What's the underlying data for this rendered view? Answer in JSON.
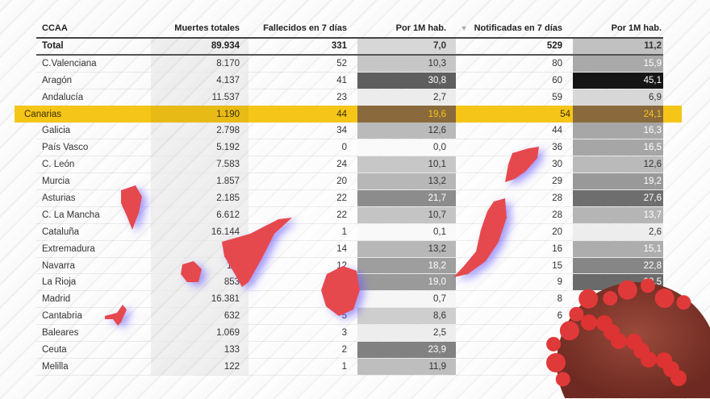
{
  "headers": {
    "ccaa": "CCAA",
    "muertes": "Muertes totales",
    "fallecidos": "Fallecidos en 7 días",
    "por1m_a": "Por 1M hab.",
    "notificadas": "Notificadas en 7 días",
    "por1m_b": "Por 1M hab.",
    "sort_icon": "triangle-down"
  },
  "total": {
    "name": "Total",
    "muertes": "89.934",
    "fallecidos": "331",
    "por1m_a": "7,0",
    "notificadas": "529",
    "por1m_b": "11,2"
  },
  "highlight": {
    "name": "Canarias",
    "muertes": "1.190",
    "fallecidos": "44",
    "por1m_a": "19,6",
    "notificadas": "54",
    "por1m_b": "24,1"
  },
  "rows_before": [
    {
      "name": "C.Valenciana",
      "muertes": "8.170",
      "fallecidos": "52",
      "por1m_a": "10,3",
      "notificadas": "80",
      "por1m_b": "15,9"
    },
    {
      "name": "Aragón",
      "muertes": "4.137",
      "fallecidos": "41",
      "por1m_a": "30,8",
      "notificadas": "60",
      "por1m_b": "45,1"
    },
    {
      "name": "Andalucía",
      "muertes": "11.537",
      "fallecidos": "23",
      "por1m_a": "2,7",
      "notificadas": "59",
      "por1m_b": "6,9"
    }
  ],
  "rows_after": [
    {
      "name": "Galicia",
      "muertes": "2.798",
      "fallecidos": "34",
      "por1m_a": "12,6",
      "notificadas": "44",
      "por1m_b": "16,3"
    },
    {
      "name": "País Vasco",
      "muertes": "5.192",
      "fallecidos": "0",
      "por1m_a": "0,0",
      "notificadas": "36",
      "por1m_b": "16,5"
    },
    {
      "name": "C. León",
      "muertes": "7.583",
      "fallecidos": "24",
      "por1m_a": "10,1",
      "notificadas": "30",
      "por1m_b": "12,6"
    },
    {
      "name": "Murcia",
      "muertes": "1.857",
      "fallecidos": "20",
      "por1m_a": "13,2",
      "notificadas": "29",
      "por1m_b": "19,2"
    },
    {
      "name": "Asturias",
      "muertes": "2.185",
      "fallecidos": "22",
      "por1m_a": "21,7",
      "notificadas": "28",
      "por1m_b": "27,6"
    },
    {
      "name": "C. La Mancha",
      "muertes": "6.612",
      "fallecidos": "22",
      "por1m_a": "10,7",
      "notificadas": "28",
      "por1m_b": "13,7"
    },
    {
      "name": "Cataluña",
      "muertes": "16.144",
      "fallecidos": "1",
      "por1m_a": "0,1",
      "notificadas": "20",
      "por1m_b": "2,6"
    },
    {
      "name": "Extremadura",
      "muertes": "2",
      "fallecidos": "14",
      "por1m_a": "13,2",
      "notificadas": "16",
      "por1m_b": "15,1"
    },
    {
      "name": "Navarra",
      "muertes": "1.3",
      "fallecidos": "12",
      "por1m_a": "18,2",
      "notificadas": "15",
      "por1m_b": "22,8"
    },
    {
      "name": "La Rioja",
      "muertes": "853",
      "fallecidos": "",
      "por1m_a": "19,0",
      "notificadas": "9",
      "por1m_b": "28,5"
    },
    {
      "name": "Madrid",
      "muertes": "16.381",
      "fallecidos": "",
      "por1m_a": "0,7",
      "notificadas": "8",
      "por1m_b": ""
    },
    {
      "name": "Cantabria",
      "muertes": "632",
      "fallecidos": "5",
      "por1m_a": "8,6",
      "notificadas": "6",
      "por1m_b": ""
    },
    {
      "name": "Baleares",
      "muertes": "1.069",
      "fallecidos": "3",
      "por1m_a": "2,5",
      "notificadas": "",
      "por1m_b": ""
    },
    {
      "name": "Ceuta",
      "muertes": "133",
      "fallecidos": "2",
      "por1m_a": "23,9",
      "notificadas": "",
      "por1m_b": ""
    },
    {
      "name": "Melilla",
      "muertes": "122",
      "fallecidos": "1",
      "por1m_a": "11,9",
      "notificadas": "",
      "por1m_b": ""
    }
  ],
  "colors": {
    "highlight": "#f5c518",
    "highlight_cell": "#8a6a3c",
    "islands": "#e5484d",
    "virus": "#c0392b"
  }
}
